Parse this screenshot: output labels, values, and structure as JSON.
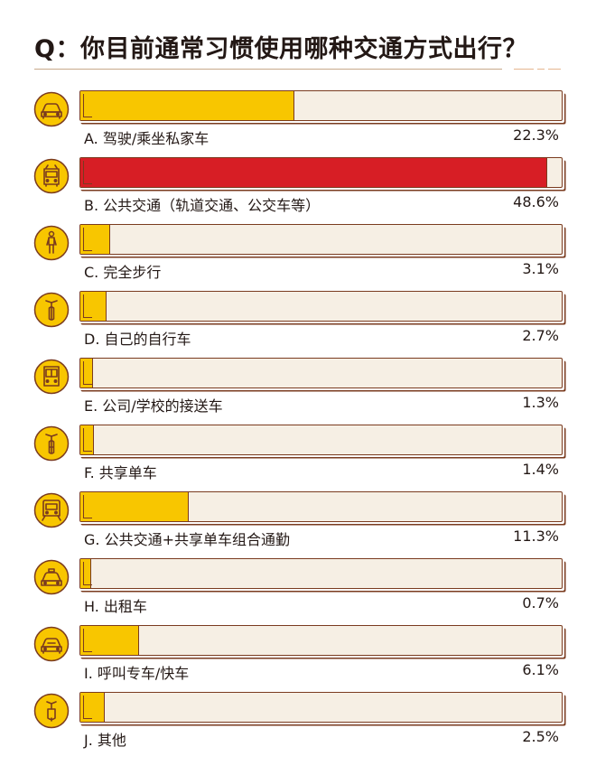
{
  "title": "Q：你目前通常习惯使用哪种交通方式出行？",
  "colors": {
    "highlight": "#d71e25",
    "normal": "#f8c600",
    "track": "#f6efe4",
    "outline": "#7a3b1f",
    "icon_bg": "#f8c600"
  },
  "chart_data": {
    "type": "bar",
    "orientation": "horizontal",
    "title": "Q：你目前通常习惯使用哪种交通方式出行？",
    "xlabel": "",
    "ylabel": "",
    "xlim": [
      0,
      50
    ],
    "categories": [
      "A.  驾驶/乘坐私家车",
      "B.  公共交通（轨道交通、公交车等）",
      "C.  完全步行",
      "D.  自己的自行车",
      "E.  公司/学校的接送车",
      "F.  共享单车",
      "G.  公共交通+共享单车组合通勤",
      "H.  出租车",
      "I.  呼叫专车/快车",
      "J.  其他"
    ],
    "values": [
      22.3,
      48.6,
      3.1,
      2.7,
      1.3,
      1.4,
      11.3,
      0.7,
      6.1,
      2.5
    ],
    "value_labels": [
      "22.3%",
      "48.6%",
      "3.1%",
      "2.7%",
      "1.3%",
      "1.4%",
      "11.3%",
      "0.7%",
      "6.1%",
      "2.5%"
    ],
    "icons": [
      "car-icon",
      "bus-icon",
      "pedestrian-icon",
      "bicycle-icon",
      "shuttle-bus-icon",
      "shared-bike-icon",
      "train-icon",
      "taxi-icon",
      "ride-hailing-car-icon",
      "scooter-icon"
    ],
    "highlight_index": 1,
    "grid": false,
    "legend": "none"
  }
}
